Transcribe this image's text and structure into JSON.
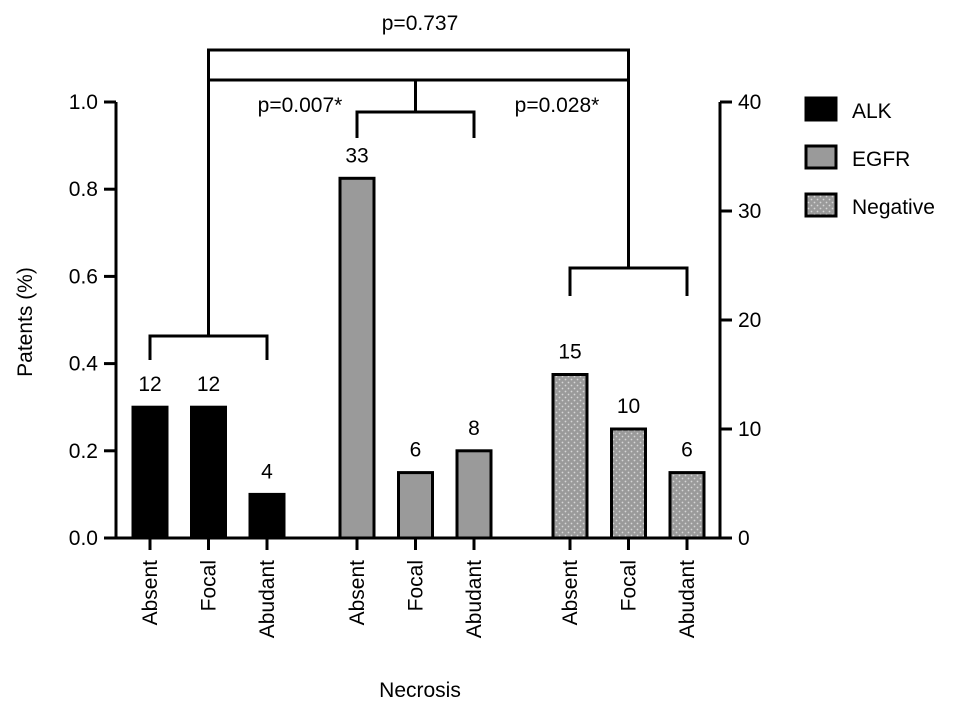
{
  "chart_data": {
    "type": "bar",
    "xlabel": "Necrosis",
    "ylabel": "Patents (%)",
    "ylim": [
      0,
      1.0
    ],
    "y2lim": [
      0,
      40
    ],
    "yticks": [
      "0.0",
      "0.2",
      "0.4",
      "0.6",
      "0.8",
      "1.0"
    ],
    "y2ticks": [
      "0",
      "10",
      "20",
      "30",
      "40"
    ],
    "legend_position": "right",
    "groups": [
      {
        "name": "ALK",
        "color": "#000000",
        "pattern": "solid",
        "categories": [
          "Absent",
          "Focal",
          "Abudant"
        ],
        "values": [
          0.3,
          0.3,
          0.1
        ],
        "labels": [
          "12",
          "12",
          "4"
        ]
      },
      {
        "name": "EGFR",
        "color": "#9a9a9a",
        "pattern": "solid",
        "categories": [
          "Absent",
          "Focal",
          "Abudant"
        ],
        "values": [
          0.825,
          0.15,
          0.2
        ],
        "labels": [
          "33",
          "6",
          "8"
        ]
      },
      {
        "name": "Negative",
        "color": "#9a9a9a",
        "pattern": "dotted",
        "categories": [
          "Absent",
          "Focal",
          "Abudant"
        ],
        "values": [
          0.375,
          0.25,
          0.15
        ],
        "labels": [
          "15",
          "10",
          "6"
        ]
      }
    ],
    "annotations": {
      "overall_p": "p=0.737",
      "alk_egfr_p": "p=0.007*",
      "egfr_negative_p": "p=0.028*"
    }
  }
}
